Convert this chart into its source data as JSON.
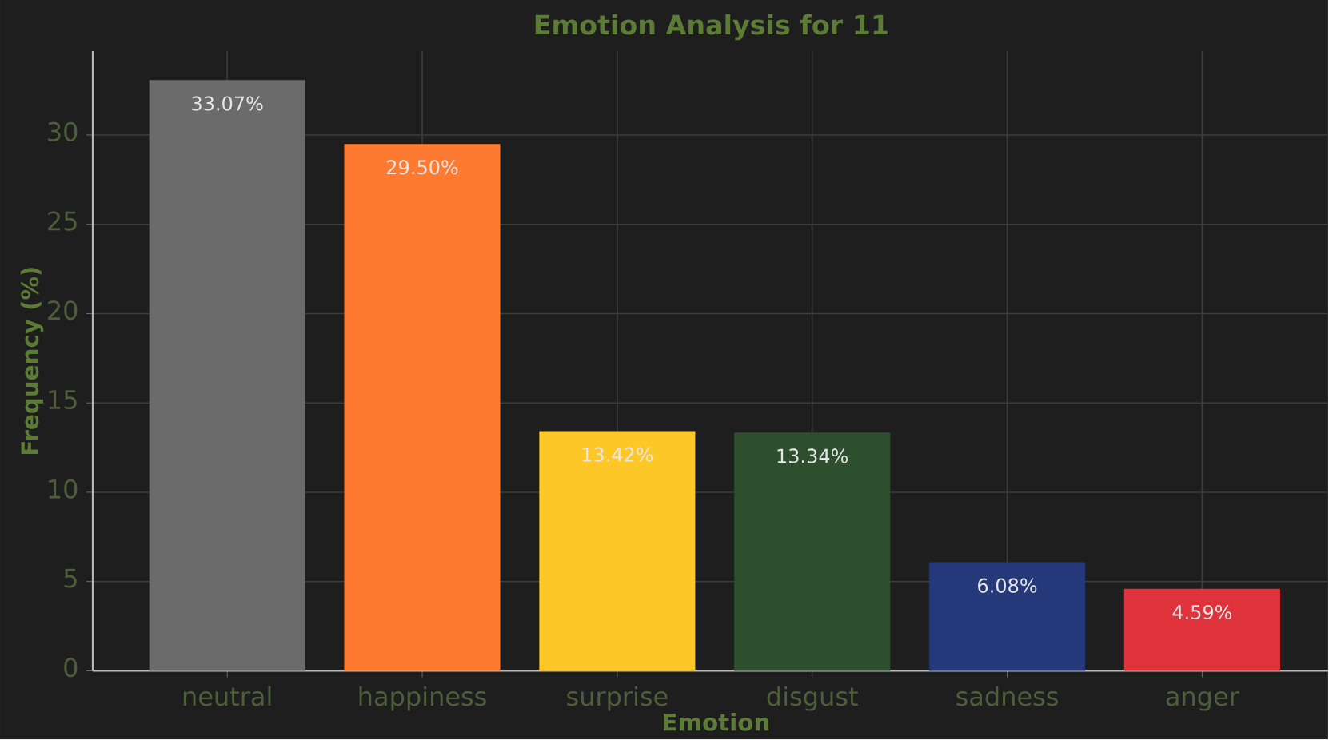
{
  "chart_data": {
    "type": "bar",
    "title": "Emotion Analysis for 11",
    "xlabel": "Emotion",
    "ylabel": "Frequency (%)",
    "categories": [
      "neutral",
      "happiness",
      "surprise",
      "disgust",
      "sadness",
      "anger"
    ],
    "values": [
      33.07,
      29.5,
      13.42,
      13.34,
      6.08,
      4.59
    ],
    "value_labels": [
      "33.07%",
      "29.50%",
      "13.42%",
      "13.34%",
      "6.08%",
      "4.59%"
    ],
    "colors": [
      "#6b6b6b",
      "#fd7a30",
      "#fdc827",
      "#2e4f2e",
      "#25397a",
      "#e0323a"
    ],
    "ylim": [
      0,
      34.7
    ],
    "yticks": [
      0,
      5,
      10,
      15,
      20,
      25,
      30
    ],
    "grid": true
  }
}
